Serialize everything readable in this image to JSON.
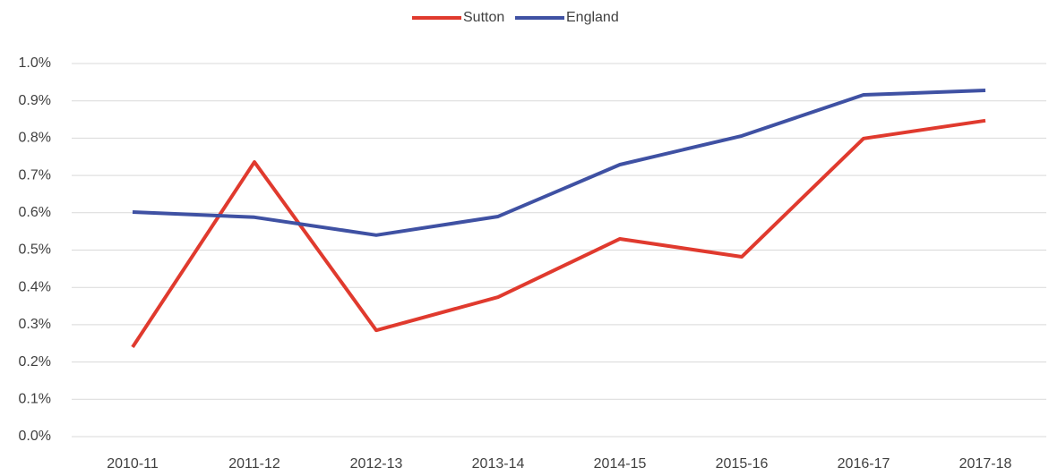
{
  "chart_data": {
    "type": "line",
    "categories": [
      "2010-11",
      "2011-12",
      "2012-13",
      "2013-14",
      "2014-15",
      "2015-16",
      "2016-17",
      "2017-18"
    ],
    "series": [
      {
        "name": "Sutton",
        "color": "#e03a2e",
        "values": [
          0.24,
          0.736,
          0.285,
          0.374,
          0.53,
          0.482,
          0.799,
          0.847
        ]
      },
      {
        "name": "England",
        "color": "#3f51a3",
        "values": [
          0.602,
          0.588,
          0.54,
          0.59,
          0.729,
          0.806,
          0.916,
          0.928
        ]
      }
    ],
    "ylim": [
      0,
      1
    ],
    "yticks": [
      {
        "value": 0,
        "label": "0.0%"
      },
      {
        "value": 0.1,
        "label": "0.1%"
      },
      {
        "value": 0.2,
        "label": "0.2%"
      },
      {
        "value": 0.3,
        "label": "0.3%"
      },
      {
        "value": 0.4,
        "label": "0.4%"
      },
      {
        "value": 0.5,
        "label": "0.5%"
      },
      {
        "value": 0.6,
        "label": "0.6%"
      },
      {
        "value": 0.7,
        "label": "0.7%"
      },
      {
        "value": 0.8,
        "label": "0.8%"
      },
      {
        "value": 0.9,
        "label": "0.9%"
      },
      {
        "value": 1,
        "label": "1.0%"
      }
    ],
    "grid": true,
    "legend": "top"
  }
}
